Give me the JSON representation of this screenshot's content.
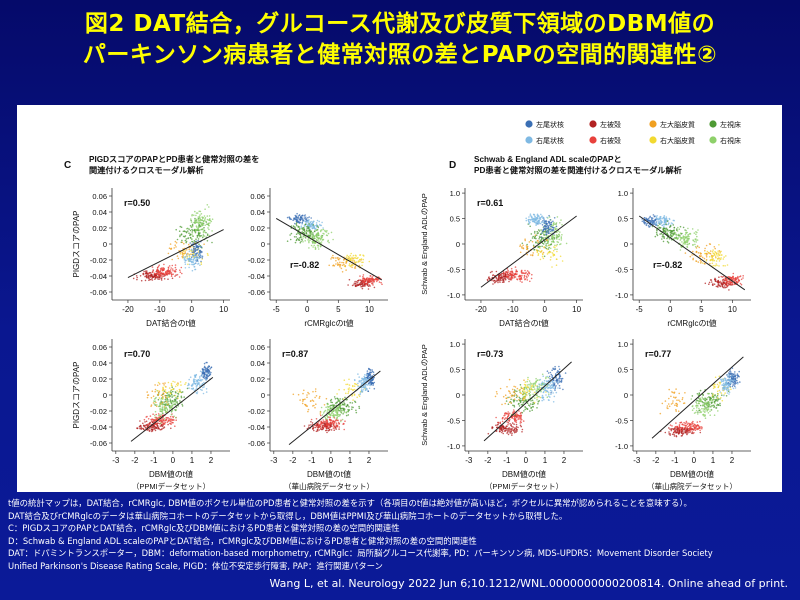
{
  "slide": {
    "title_line1": "図2 DAT結合，グルコース代謝及び皮質下領域のDBM値の",
    "title_line2": "パーキンソン病患者と健常対照の差とPAPの空間的関連性②",
    "captions": [
      "t値の統計マップは，DAT結合，rCMRglc, DBM値のボクセル単位のPD患者と健常対照の差を示す（各項目のt値は絶対値が高いほど，ボクセルに異常が認められることを意味する）。",
      "DAT結合及びrCMRglcのデータは華山病院コホートのデータセットから取得し，DBM値はPPMI及び華山病院コホートのデータセットから取得した。",
      "C：PIGDスコアのPAPとDAT結合，rCMRglc及びDBM値におけるPD患者と健常対照の差の空間的関連性",
      "D：Schwab & England ADL scaleのPAPとDAT結合，rCMRglc及びDBM値におけるPD患者と健常対照の差の空間的関連性",
      "DAT：ドパミントランスポーター，DBM：deformation-based morphometry, rCMRglc：局所脳グルコース代謝率, PD：パーキンソン病, MDS-UPDRS：Movement Disorder Society",
      "Unified Parkinson's Disease Rating Scale, PIGD：体位不安定歩行障害, PAP：進行関連パターン"
    ],
    "citation": "Wang L, et al. Neurology 2022 Jun 6;10.1212/WNL.0000000000200814. Online ahead of print."
  },
  "legend": [
    {
      "label": "左尾状核",
      "color": "#3b6fb4"
    },
    {
      "label": "右尾状核",
      "color": "#7fb9e3"
    },
    {
      "label": "左被殻",
      "color": "#b22222"
    },
    {
      "label": "右被殻",
      "color": "#e8413c"
    },
    {
      "label": "左大脳皮質",
      "color": "#f0a020"
    },
    {
      "label": "右大脳皮質",
      "color": "#f2d930"
    },
    {
      "label": "左視床",
      "color": "#4e9a34"
    },
    {
      "label": "右視床",
      "color": "#8ed06a"
    }
  ],
  "groups": {
    "C": {
      "letter": "C",
      "title1": "PIGDスコアのPAPとPD患者と健常対照の差を",
      "title2": "関連付けるクロスモーダル解析"
    },
    "D": {
      "letter": "D",
      "title1": "Schwab & England ADL scaleのPAPと",
      "title2": "PD患者と健常対照の差を関連付けるクロスモーダル解析"
    }
  },
  "chart_data": [
    {
      "id": "C1",
      "type": "scatter",
      "group": "C",
      "r_label": "r=0.50",
      "r": 0.5,
      "xlabel": "DAT結合のt値",
      "ylabel": "PIGDスコアのPAP",
      "xlim": [
        -25,
        12
      ],
      "ylim": [
        -0.07,
        0.07
      ],
      "xticks": [
        -20,
        -10,
        0,
        10
      ],
      "yticks": [
        0.06,
        0.04,
        0.02,
        0,
        -0.02,
        -0.04,
        -0.06
      ],
      "line": [
        [
          -20,
          -0.042
        ],
        [
          10,
          0.018
        ]
      ]
    },
    {
      "id": "C2",
      "type": "scatter",
      "group": "C",
      "r_label": "r=-0.82",
      "r": -0.82,
      "xlabel": "rCMRglcのt値",
      "ylabel": "",
      "xlim": [
        -6,
        13
      ],
      "ylim": [
        -0.07,
        0.07
      ],
      "xticks": [
        -5,
        0,
        5,
        10
      ],
      "yticks": [
        0.06,
        0.04,
        0.02,
        0,
        -0.02,
        -0.04,
        -0.06
      ],
      "line": [
        [
          -5,
          0.032
        ],
        [
          12,
          -0.045
        ]
      ]
    },
    {
      "id": "C3",
      "type": "scatter",
      "group": "C",
      "r_label": "r=0.70",
      "r": 0.7,
      "xlabel": "DBM値のt値",
      "subxlabel": "（PPMIデータセット）",
      "ylabel": "PIGDスコアのPAP",
      "xlim": [
        -3.2,
        3
      ],
      "ylim": [
        -0.07,
        0.07
      ],
      "xticks": [
        -3,
        -2,
        -1,
        0,
        1,
        2
      ],
      "yticks": [
        0.06,
        0.04,
        0.02,
        0,
        -0.02,
        -0.04,
        -0.06
      ],
      "line": [
        [
          -2.2,
          -0.058
        ],
        [
          2.1,
          0.022
        ]
      ]
    },
    {
      "id": "C4",
      "type": "scatter",
      "group": "C",
      "r_label": "r=0.87",
      "r": 0.87,
      "xlabel": "DBM値のt値",
      "subxlabel": "（華山病院データセット）",
      "ylabel": "",
      "xlim": [
        -3.2,
        3
      ],
      "ylim": [
        -0.07,
        0.07
      ],
      "xticks": [
        -3,
        -2,
        -1,
        0,
        1,
        2
      ],
      "yticks": [
        0.06,
        0.04,
        0.02,
        0,
        -0.02,
        -0.04,
        -0.06
      ],
      "line": [
        [
          -2.2,
          -0.062
        ],
        [
          2.6,
          0.03
        ]
      ]
    },
    {
      "id": "D1",
      "type": "scatter",
      "group": "D",
      "r_label": "r=0.61",
      "r": 0.61,
      "xlabel": "DAT結合のt値",
      "ylabel": "Schwab & England ADLのPAP",
      "xlim": [
        -25,
        12
      ],
      "ylim": [
        -1.1,
        1.1
      ],
      "xticks": [
        -20,
        -10,
        0,
        10
      ],
      "yticks": [
        1.0,
        0.5,
        0,
        -0.5,
        -1.0
      ],
      "line": [
        [
          -20,
          -0.85
        ],
        [
          10,
          0.55
        ]
      ]
    },
    {
      "id": "D2",
      "type": "scatter",
      "group": "D",
      "r_label": "r=-0.82",
      "r": -0.82,
      "xlabel": "rCMRglcのt値",
      "ylabel": "",
      "xlim": [
        -6,
        13
      ],
      "ylim": [
        -1.1,
        1.1
      ],
      "xticks": [
        -5,
        0,
        5,
        10
      ],
      "yticks": [
        1.0,
        0.5,
        0,
        -0.5,
        -1.0
      ],
      "line": [
        [
          -5,
          0.55
        ],
        [
          12,
          -0.9
        ]
      ]
    },
    {
      "id": "D3",
      "type": "scatter",
      "group": "D",
      "r_label": "r=0.73",
      "r": 0.73,
      "xlabel": "DBM値のt値",
      "subxlabel": "（PPMIデータセット）",
      "ylabel": "Schwab & England ADLのPAP",
      "xlim": [
        -3.2,
        3
      ],
      "ylim": [
        -1.1,
        1.1
      ],
      "xticks": [
        -3,
        -2,
        -1,
        0,
        1,
        2
      ],
      "yticks": [
        1.0,
        0.5,
        0,
        -0.5,
        -1.0
      ],
      "line": [
        [
          -2.2,
          -0.9
        ],
        [
          2.4,
          0.65
        ]
      ]
    },
    {
      "id": "D4",
      "type": "scatter",
      "group": "D",
      "r_label": "r=0.77",
      "r": 0.77,
      "xlabel": "DBM値のt値",
      "subxlabel": "（華山病院データセット）",
      "ylabel": "",
      "xlim": [
        -3.2,
        3
      ],
      "ylim": [
        -1.1,
        1.1
      ],
      "xticks": [
        -3,
        -2,
        -1,
        0,
        1,
        2
      ],
      "yticks": [
        1.0,
        0.5,
        0,
        -0.5,
        -1.0
      ],
      "line": [
        [
          -2.2,
          -0.85
        ],
        [
          2.6,
          0.75
        ]
      ]
    }
  ]
}
